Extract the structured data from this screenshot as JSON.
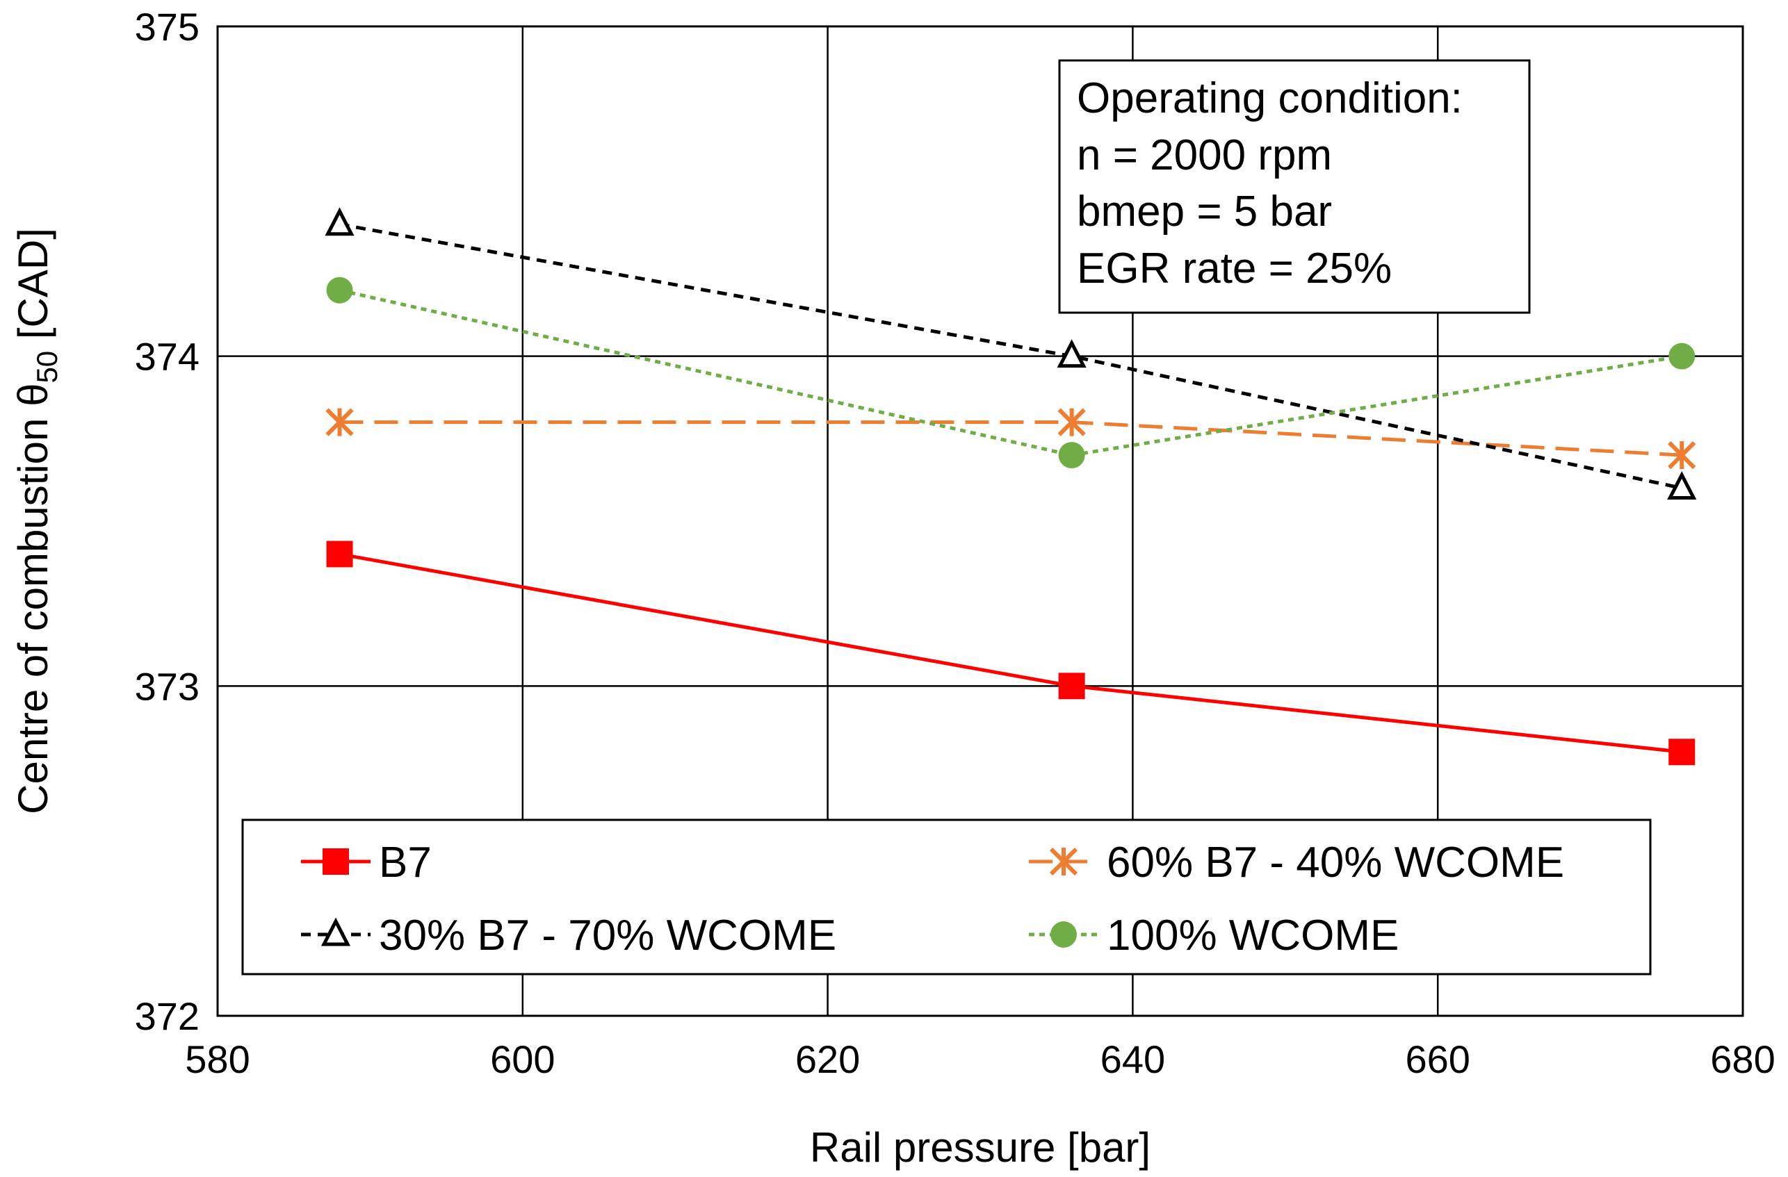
{
  "chart_data": {
    "type": "line",
    "title": "",
    "xlabel": "Rail pressure [bar]",
    "ylabel_main": "Centre of combustion θ",
    "ylabel_sub": "50",
    "ylabel_unit": " [CAD]",
    "xlim": [
      580,
      680
    ],
    "ylim": [
      372,
      375
    ],
    "x_ticks": [
      580,
      600,
      620,
      640,
      660,
      680
    ],
    "y_ticks": [
      372,
      373,
      374,
      375
    ],
    "grid": true,
    "legend_position": "bottom",
    "x": [
      588,
      636,
      676
    ],
    "series": [
      {
        "name": "B7",
        "values": [
          373.4,
          373.0,
          372.8
        ],
        "color": "#ff0000",
        "dash": "solid",
        "marker": "square"
      },
      {
        "name": "60% B7 - 40% WCOME",
        "values": [
          373.8,
          373.8,
          373.7
        ],
        "color": "#ed7d31",
        "dash": "long-dash",
        "marker": "asterisk"
      },
      {
        "name": "30% B7 - 70% WCOME",
        "values": [
          374.4,
          374.0,
          373.6
        ],
        "color": "#000000",
        "dash": "short-dash",
        "marker": "triangle"
      },
      {
        "name": "100% WCOME",
        "values": [
          374.2,
          373.7,
          374.0
        ],
        "color": "#70ad47",
        "dash": "dot",
        "marker": "circle"
      }
    ],
    "annotation": {
      "lines": [
        "Operating condition:",
        "n = 2000 rpm",
        "bmep = 5 bar",
        "EGR rate = 25%"
      ],
      "position": "top-right"
    }
  }
}
